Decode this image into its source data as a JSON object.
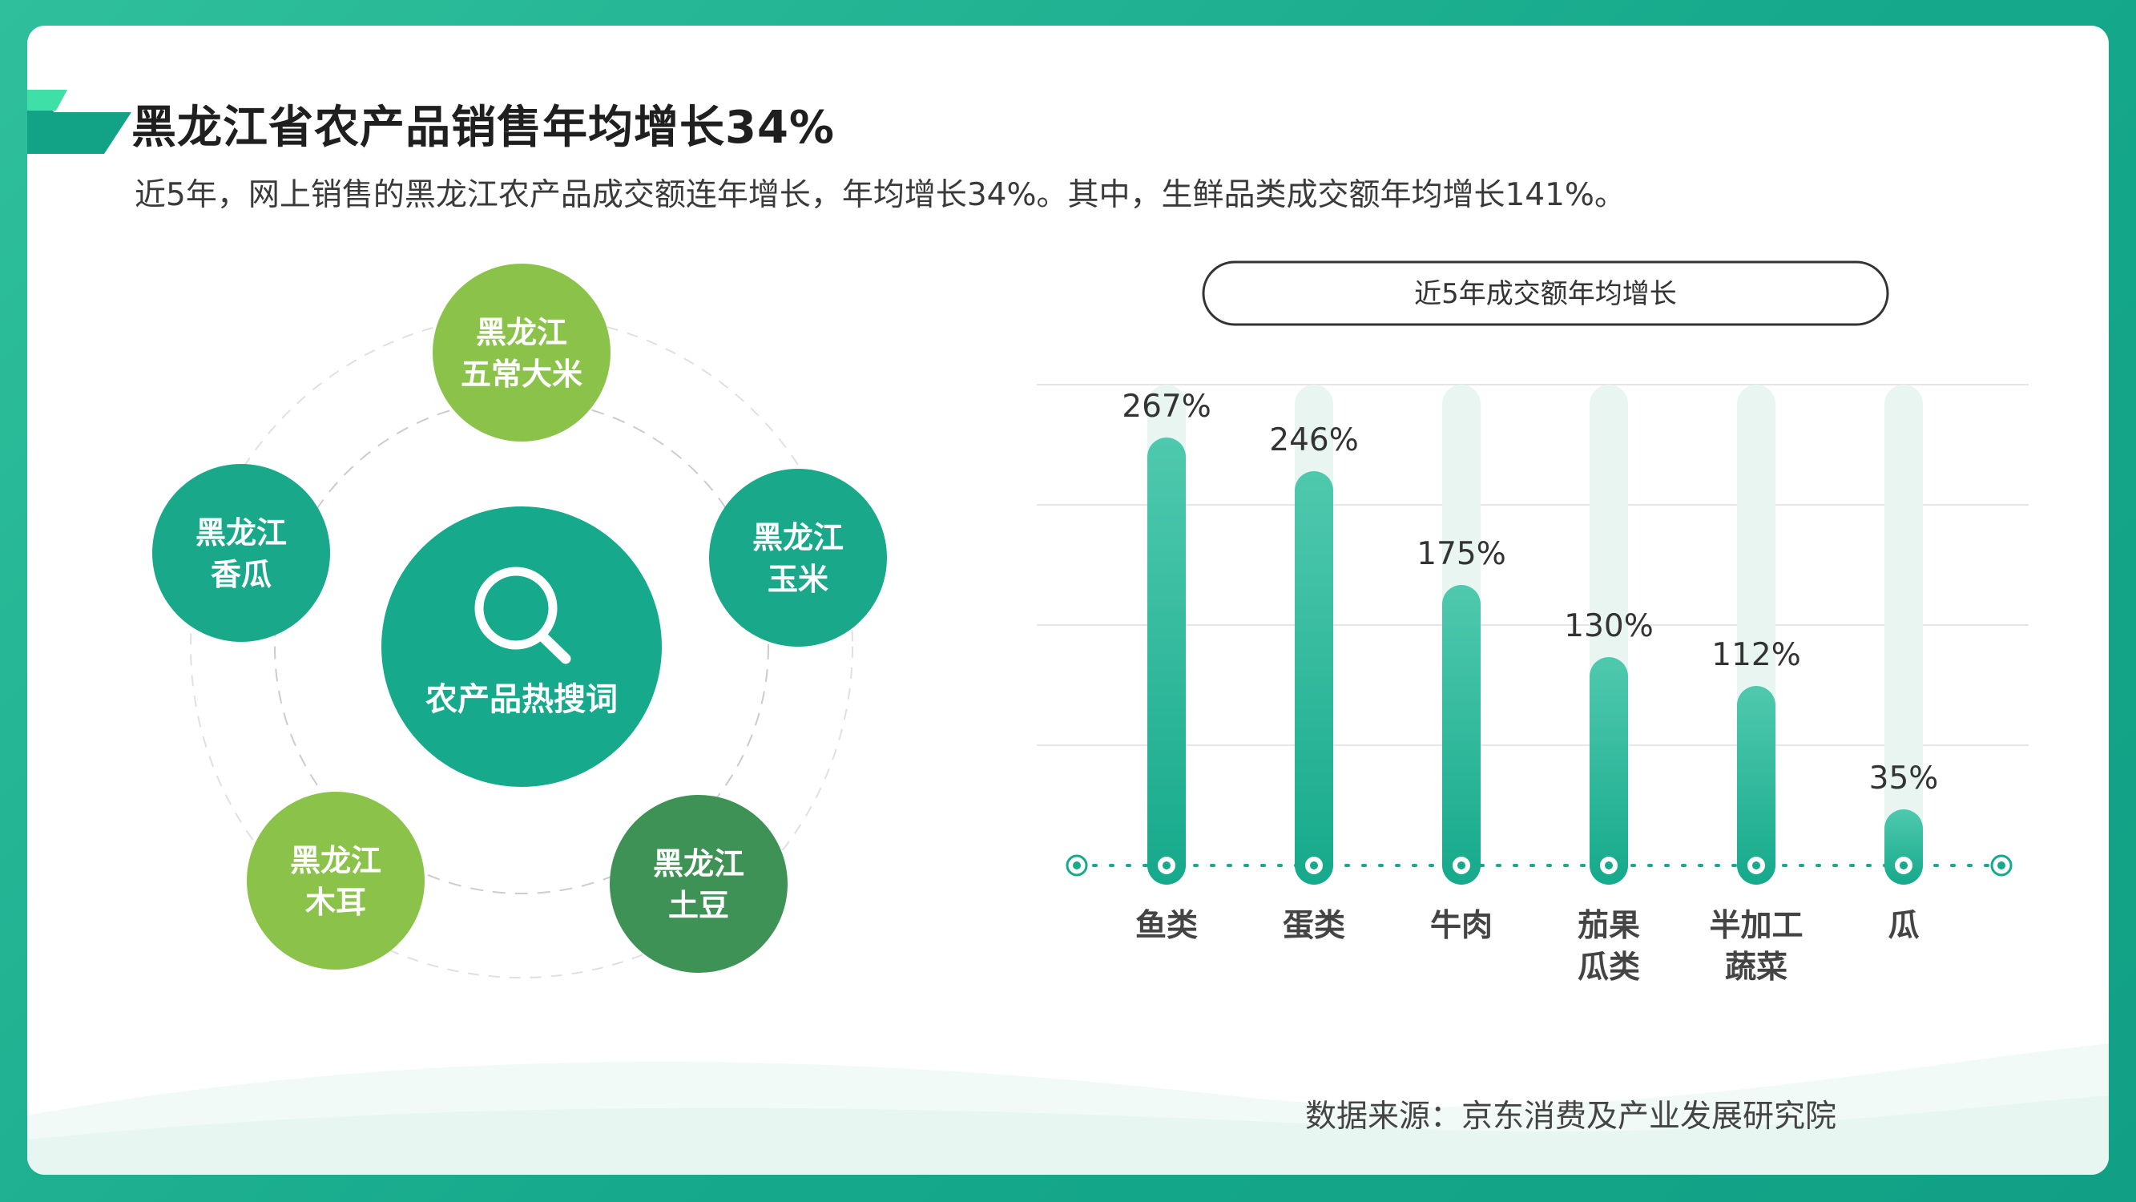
{
  "header": {
    "title": "黑龙江省农产品销售年均增长34%",
    "subtitle": "近5年，网上销售的黑龙江农产品成交额连年增长，年均增长34%。其中，生鲜品类成交额年均增长141%。"
  },
  "hot_words": {
    "center_label": "农产品热搜词",
    "center_icon": "search-icon",
    "items": [
      {
        "line1": "黑龙江",
        "line2": "五常大米",
        "color": "#8bc34a"
      },
      {
        "line1": "黑龙江",
        "line2": "玉米",
        "color": "#1aa88a"
      },
      {
        "line1": "黑龙江",
        "line2": "土豆",
        "color": "#3e9255"
      },
      {
        "line1": "黑龙江",
        "line2": "木耳",
        "color": "#8bc34a"
      },
      {
        "line1": "黑龙江",
        "line2": "香瓜",
        "color": "#1aa88a"
      }
    ]
  },
  "chart_data": {
    "type": "bar",
    "title": "近5年成交额年均增长",
    "categories": [
      [
        "鱼类"
      ],
      [
        "蛋类"
      ],
      [
        "牛肉"
      ],
      [
        "茄果",
        "瓜类"
      ],
      [
        "半加工",
        "蔬菜"
      ],
      [
        "瓜"
      ]
    ],
    "values": [
      267,
      246,
      175,
      130,
      112,
      35
    ],
    "value_labels": [
      "267%",
      "246%",
      "175%",
      "130%",
      "112%",
      "35%"
    ],
    "unit": "%",
    "ylim": [
      0,
      300
    ],
    "grid": true,
    "colors": {
      "bar": "#16a98b",
      "bar_light": "#4fc9ae",
      "track": "#e8f5f0"
    }
  },
  "footer": {
    "source": "数据来源：京东消费及产业发展研究院"
  }
}
